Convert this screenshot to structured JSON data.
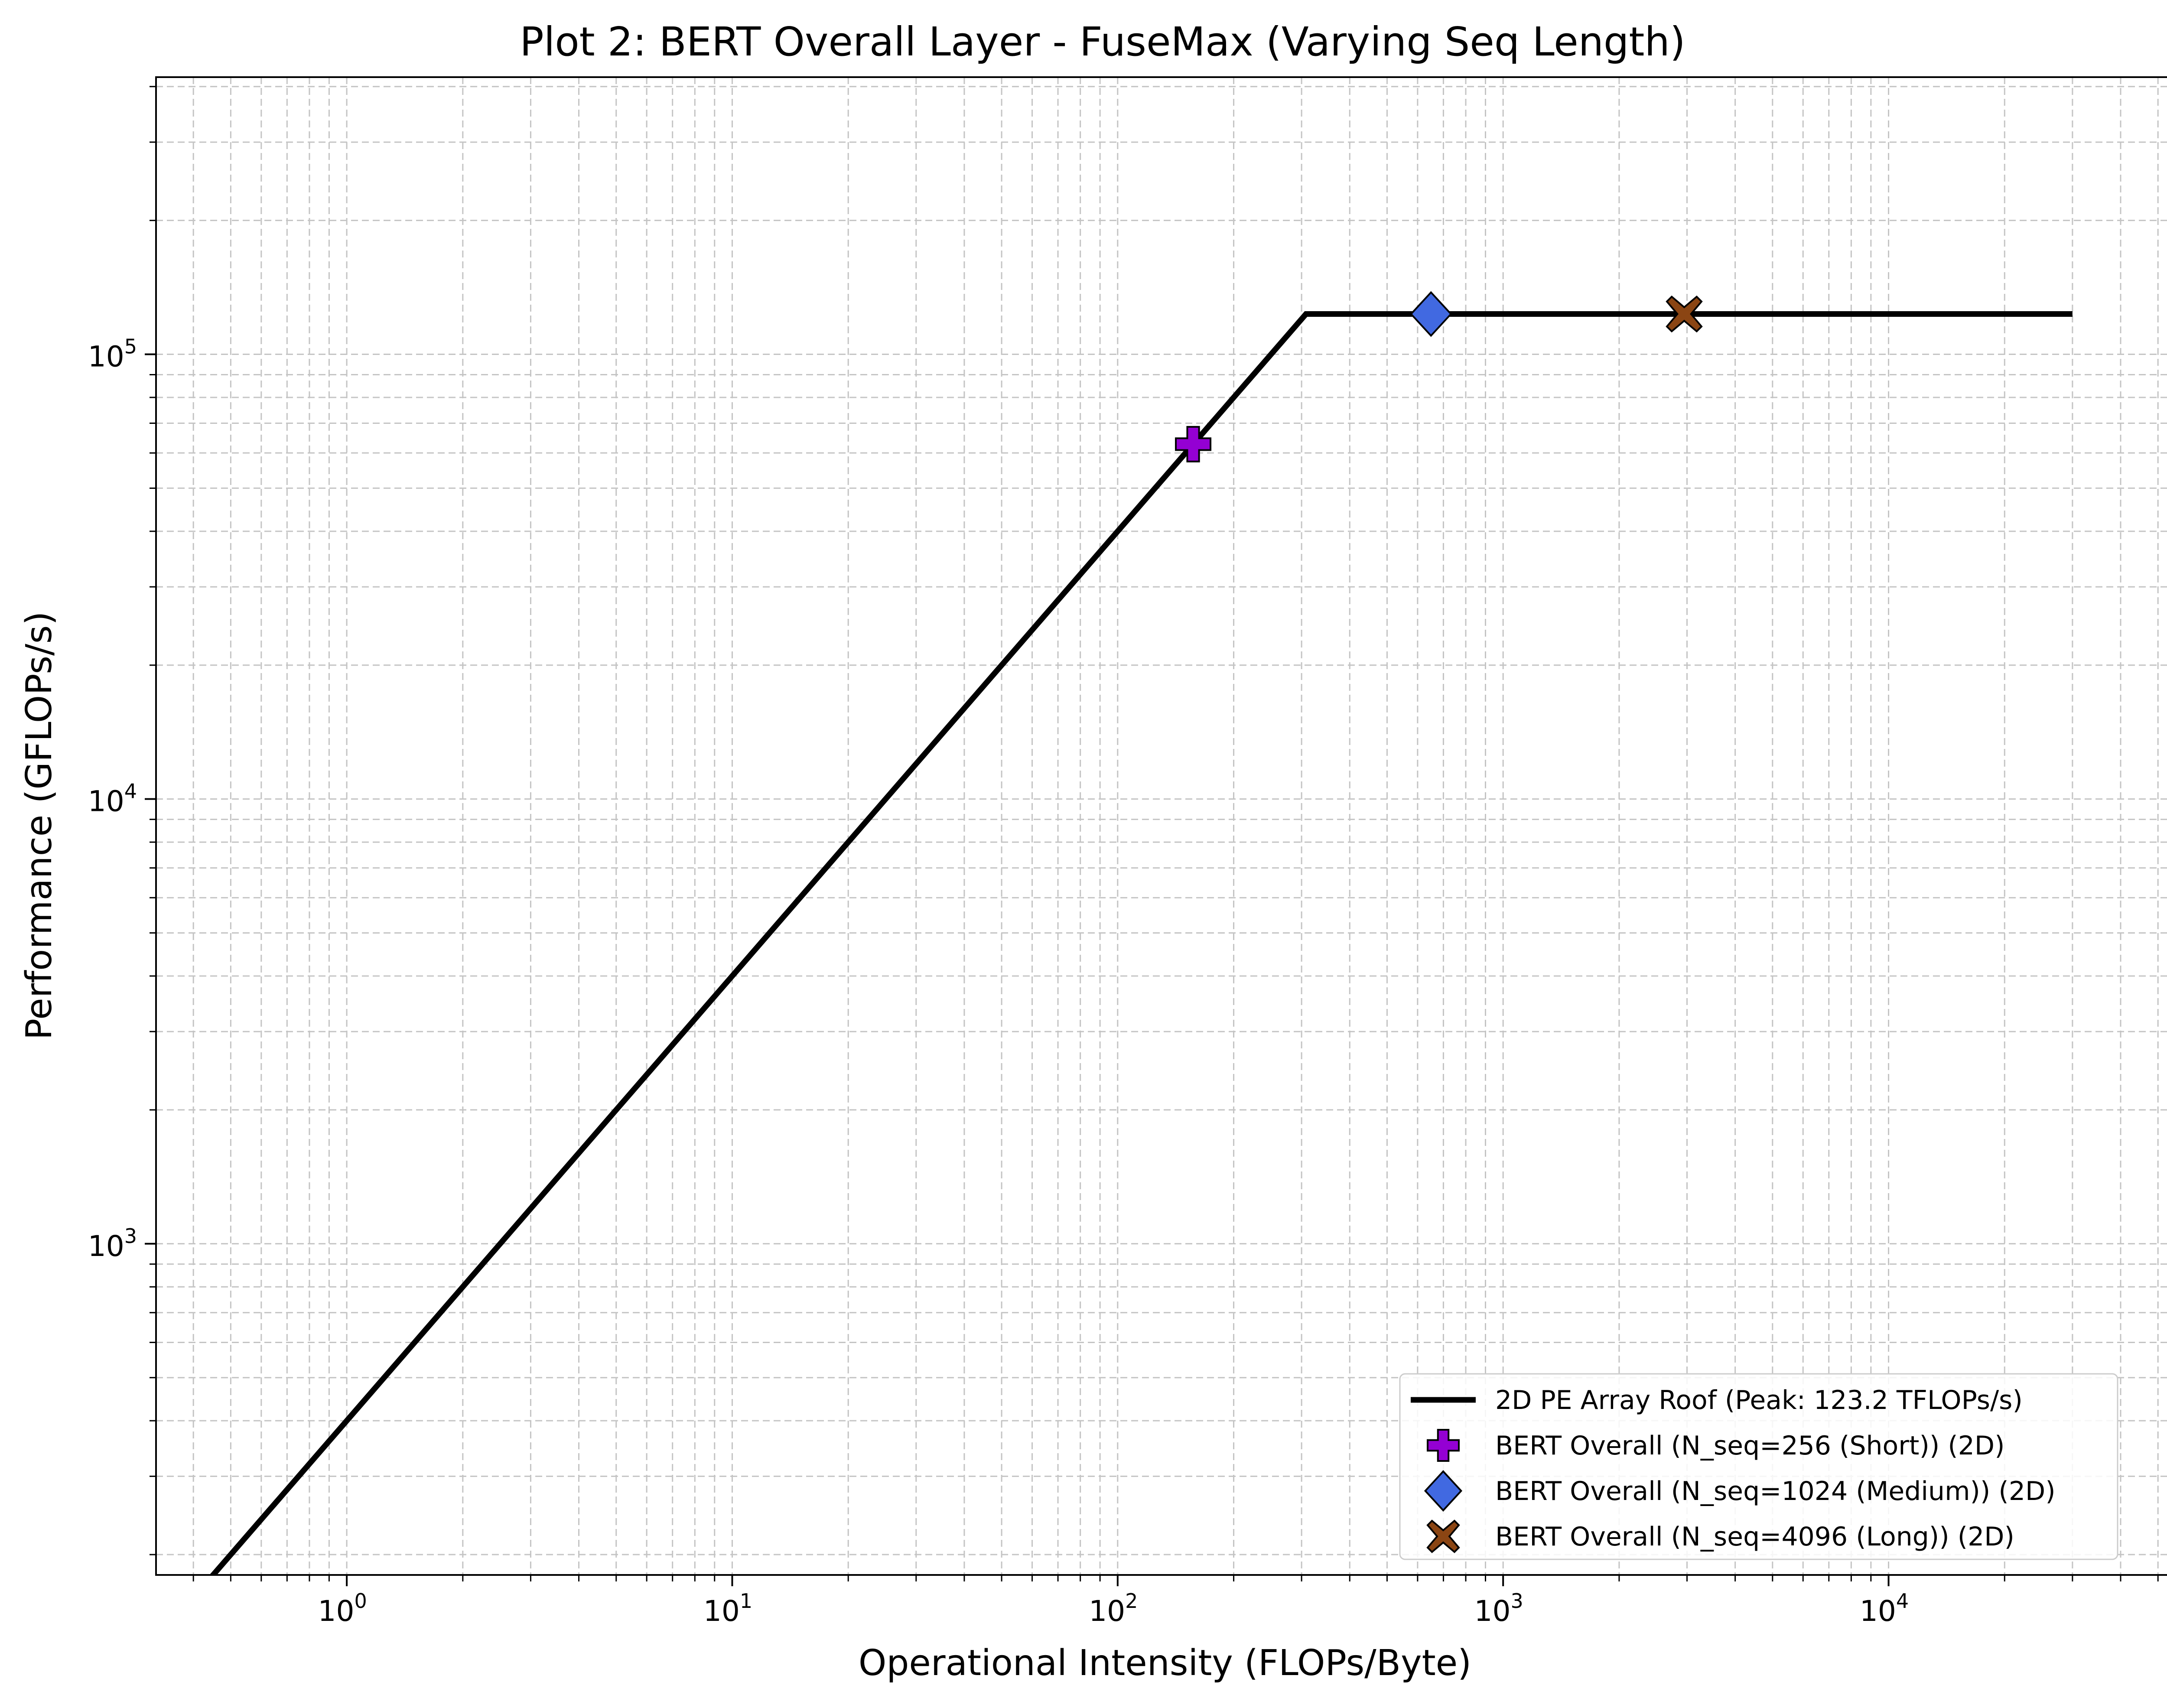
{
  "chart_data": {
    "type": "line",
    "title": "Plot 2: BERT Overall Layer - FuseMax (Varying Seq Length)",
    "xlabel": "Operational Intensity (FLOPs/Byte)",
    "ylabel": "Performance (GFLOPs/s)",
    "xscale": "log",
    "yscale": "log",
    "xlim": [
      0.32,
      55000
    ],
    "ylim": [
      180,
      420000
    ],
    "grid": true,
    "legend_position": "lower-right",
    "x_tick_labels": [
      {
        "value": 1,
        "base": "10",
        "exp": "0"
      },
      {
        "value": 10,
        "base": "10",
        "exp": "1"
      },
      {
        "value": 100,
        "base": "10",
        "exp": "2"
      },
      {
        "value": 1000,
        "base": "10",
        "exp": "3"
      },
      {
        "value": 10000,
        "base": "10",
        "exp": "4"
      }
    ],
    "y_tick_labels": [
      {
        "value": 1000,
        "base": "10",
        "exp": "3"
      },
      {
        "value": 10000,
        "base": "10",
        "exp": "4"
      },
      {
        "value": 100000,
        "base": "10",
        "exp": "5"
      }
    ],
    "roof": {
      "name": "2D PE Array Roof (Peak: 123.2 TFLOPs/s)",
      "color": "#000000",
      "x": [
        0.3,
        308,
        30000
      ],
      "y": [
        120,
        123200,
        123200
      ]
    },
    "series": [
      {
        "name": "BERT Overall (N_seq=256 (Short)) (2D)",
        "marker": "plus",
        "color": "#9400d3",
        "x": [
          157
        ],
        "y": [
          62800
        ]
      },
      {
        "name": "BERT Overall (N_seq=1024 (Medium)) (2D)",
        "marker": "diamond",
        "color": "#4169e1",
        "x": [
          650
        ],
        "y": [
          123200
        ]
      },
      {
        "name": "BERT Overall (N_seq=4096 (Long)) (2D)",
        "marker": "x",
        "color": "#8b4513",
        "x": [
          2950
        ],
        "y": [
          123200
        ]
      }
    ]
  }
}
